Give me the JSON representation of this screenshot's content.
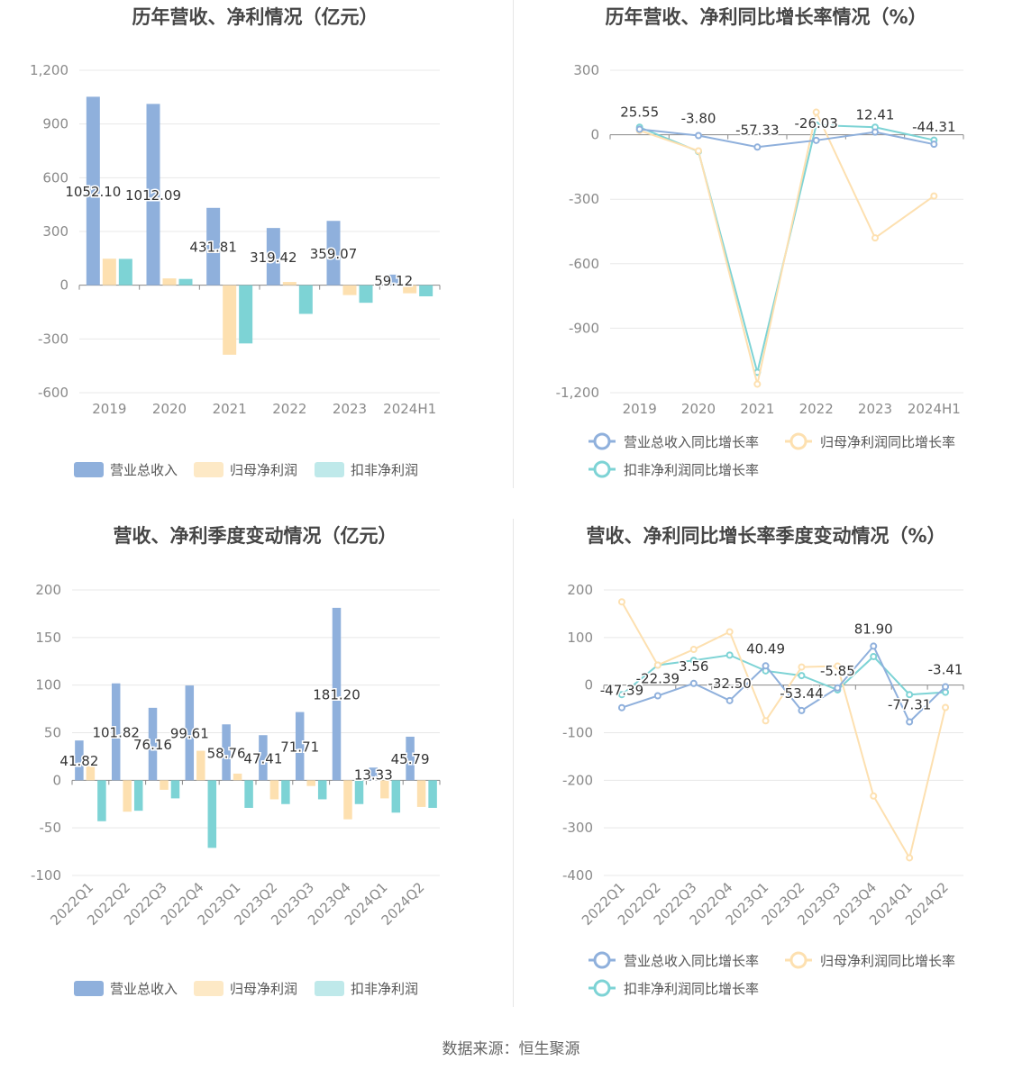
{
  "source": "数据来源：恒生聚源",
  "colors": {
    "revenue": "#8fb0dc",
    "netprofit": "#fde0b0",
    "deducted": "#7dd3d5"
  },
  "chart_data": [
    {
      "id": "annual-amount",
      "type": "bar",
      "title": "历年营收、净利情况（亿元）",
      "categories": [
        "2019",
        "2020",
        "2021",
        "2022",
        "2023",
        "2024H1"
      ],
      "ylim": [
        -600,
        1200
      ],
      "yticks": [
        -600,
        -300,
        0,
        300,
        600,
        900,
        1200
      ],
      "ytick_labels": [
        "-600",
        "-300",
        "0",
        "300",
        "600",
        "900",
        "1,200"
      ],
      "series": [
        {
          "name": "营业总收入",
          "values": [
            1052.1,
            1012.09,
            431.81,
            319.42,
            359.07,
            59.12
          ],
          "labels": [
            "1052.10",
            "1012.09",
            "431.81",
            "319.42",
            "359.07",
            "59.12"
          ]
        },
        {
          "name": "归母净利润",
          "values": [
            148,
            38,
            -388,
            18,
            -55,
            -45
          ]
        },
        {
          "name": "扣非净利润",
          "values": [
            147,
            35,
            -325,
            -160,
            -98,
            -62
          ]
        }
      ],
      "legend": "bottom"
    },
    {
      "id": "annual-growth",
      "type": "line",
      "title": "历年营收、净利同比增长率情况（%）",
      "categories": [
        "2019",
        "2020",
        "2021",
        "2022",
        "2023",
        "2024H1"
      ],
      "ylim": [
        -1200,
        300
      ],
      "yticks": [
        -1200,
        -900,
        -600,
        -300,
        0,
        300
      ],
      "ytick_labels": [
        "-1,200",
        "-900",
        "-600",
        "-300",
        "0",
        "300"
      ],
      "series": [
        {
          "name": "营业总收入同比增长率",
          "values": [
            25.55,
            -3.8,
            -57.33,
            -26.03,
            12.41,
            -44.31
          ],
          "labels": [
            "25.55",
            "-3.80",
            "-57.33",
            "-26.03",
            "12.41",
            "-44.31"
          ]
        },
        {
          "name": "归母净利润同比增长率",
          "values": [
            20,
            -75,
            -1160,
            105,
            -480,
            -285
          ]
        },
        {
          "name": "扣非净利润同比增长率",
          "values": [
            35,
            -78,
            -1105,
            45,
            35,
            -25
          ]
        }
      ],
      "legend": "bottom"
    },
    {
      "id": "quarterly-amount",
      "type": "bar",
      "title": "营收、净利季度变动情况（亿元）",
      "categories": [
        "2022Q1",
        "2022Q2",
        "2022Q3",
        "2022Q4",
        "2023Q1",
        "2023Q2",
        "2023Q3",
        "2023Q4",
        "2024Q1",
        "2024Q2"
      ],
      "ylim": [
        -100,
        200
      ],
      "yticks": [
        -100,
        -50,
        0,
        50,
        100,
        150,
        200
      ],
      "ytick_labels": [
        "-100",
        "-50",
        "0",
        "50",
        "100",
        "150",
        "200"
      ],
      "series": [
        {
          "name": "营业总收入",
          "values": [
            41.82,
            101.82,
            76.16,
            99.61,
            58.76,
            47.41,
            71.71,
            181.2,
            13.33,
            45.79
          ],
          "labels": [
            "41.82",
            "101.82",
            "76.16",
            "99.61",
            "58.76",
            "47.41",
            "71.71",
            "181.20",
            "13.33",
            "45.79"
          ]
        },
        {
          "name": "归母净利润",
          "values": [
            15,
            -33,
            -10,
            31,
            7,
            -20,
            -6,
            -41,
            -19,
            -28
          ]
        },
        {
          "name": "扣非净利润",
          "values": [
            -43,
            -32,
            -19,
            -71,
            -29,
            -25,
            -20,
            -25,
            -34,
            -29
          ]
        }
      ],
      "legend": "bottom"
    },
    {
      "id": "quarterly-growth",
      "type": "line",
      "title": "营收、净利同比增长率季度变动情况（%）",
      "categories": [
        "2022Q1",
        "2022Q2",
        "2022Q3",
        "2022Q4",
        "2023Q1",
        "2023Q2",
        "2023Q3",
        "2023Q4",
        "2024Q1",
        "2024Q2"
      ],
      "ylim": [
        -400,
        200
      ],
      "yticks": [
        -400,
        -300,
        -200,
        -100,
        0,
        100,
        200
      ],
      "ytick_labels": [
        "-400",
        "-300",
        "-200",
        "-100",
        "0",
        "100",
        "200"
      ],
      "series": [
        {
          "name": "营业总收入同比增长率",
          "values": [
            -47.39,
            -22.39,
            3.56,
            -32.5,
            40.49,
            -53.44,
            -5.85,
            81.9,
            -77.31,
            -3.41
          ],
          "labels": [
            "-47.39",
            "-22.39",
            "3.56",
            "-32.50",
            "40.49",
            "-53.44",
            "-5.85",
            "81.90",
            "-77.31",
            "-3.41"
          ]
        },
        {
          "name": "归母净利润同比增长率",
          "values": [
            175,
            42,
            75,
            112,
            -75,
            38,
            40,
            -233,
            -363,
            -47
          ]
        },
        {
          "name": "扣非净利润同比增长率",
          "values": [
            -20,
            42,
            52,
            63,
            30,
            20,
            -10,
            60,
            -20,
            -15
          ]
        }
      ],
      "legend": "bottom"
    }
  ]
}
